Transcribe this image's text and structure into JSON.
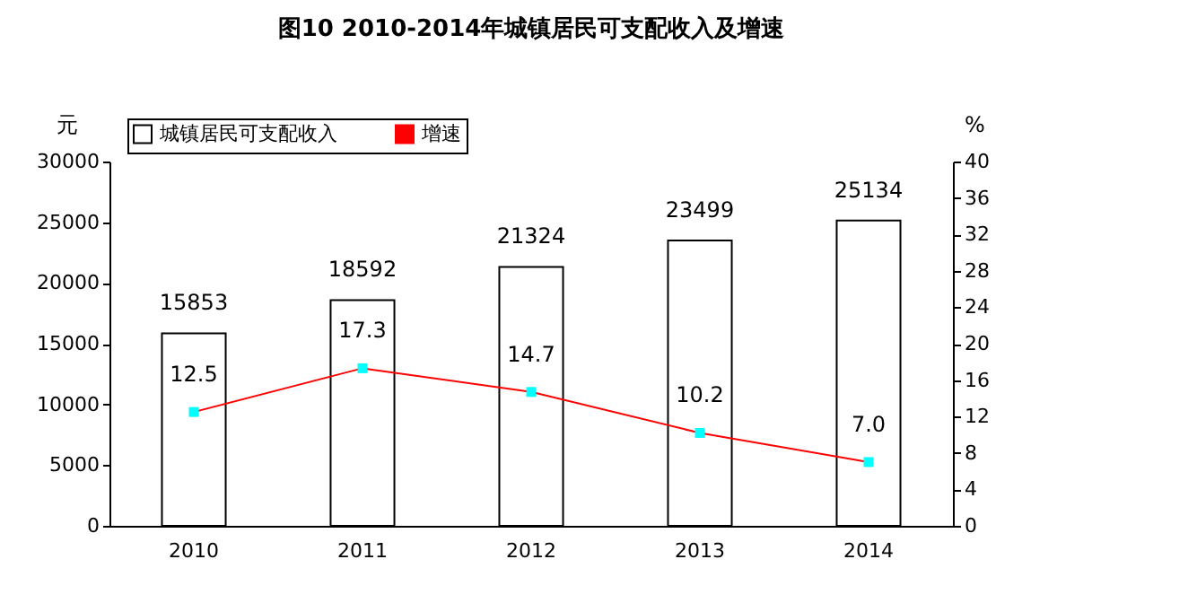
{
  "chart_data": {
    "type": "bar",
    "title": "图10  2010-2014年城镇居民可支配收入及增速",
    "ylabel": "元",
    "y2label": "%",
    "categories": [
      "2010",
      "2011",
      "2012",
      "2013",
      "2014"
    ],
    "series": [
      {
        "name": "城镇居民可支配收入",
        "color": "#ffffff",
        "values": [
          15853,
          18592,
          21324,
          23499,
          25134
        ],
        "value_labels": [
          "15853",
          "18592",
          "21324",
          "23499",
          "25134"
        ]
      },
      {
        "name": "增速",
        "type": "line",
        "axis": "y2",
        "color": "#ff0000",
        "marker": "square",
        "values": [
          12.5,
          17.3,
          14.7,
          10.2,
          7.0
        ],
        "value_labels": [
          "12.5",
          "17.3",
          "14.7",
          "10.2",
          "7.0"
        ]
      }
    ],
    "ylim": [
      0,
      30000
    ],
    "yticks": [
      0,
      5000,
      10000,
      15000,
      20000,
      25000,
      30000
    ],
    "y2lim": [
      0,
      40
    ],
    "y2ticks": [
      0,
      4,
      8,
      12,
      16,
      20,
      24,
      28,
      32,
      36,
      40
    ],
    "legend": "top left",
    "grid": false
  }
}
